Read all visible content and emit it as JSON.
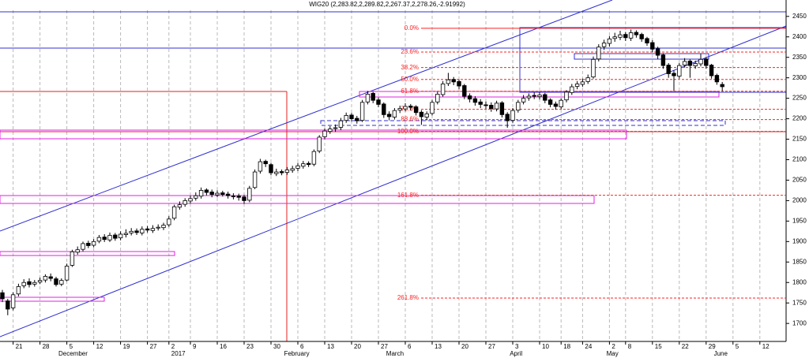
{
  "chart_data": {
    "type": "candlestick",
    "title": "WIG20 (2,283.82,2,289.82,2,267.37,2,278.26,-2.91992)",
    "categories": [
      null,
      null,
      "21",
      null,
      null,
      null,
      null,
      "28",
      null,
      null,
      null,
      null,
      "5",
      null,
      null,
      null,
      null,
      "12",
      null,
      null,
      null,
      null,
      "19",
      null,
      null,
      null,
      null,
      "27",
      null,
      null,
      null,
      "2",
      null,
      null,
      null,
      "9",
      null,
      null,
      null,
      null,
      "16",
      null,
      null,
      null,
      null,
      "23",
      null,
      null,
      null,
      null,
      "30",
      null,
      null,
      null,
      null,
      "6",
      null,
      null,
      null,
      null,
      "13",
      null,
      null,
      null,
      null,
      "20",
      null,
      null,
      null,
      null,
      "27",
      null,
      null,
      null,
      null,
      "6",
      null,
      null,
      null,
      null,
      "13",
      null,
      null,
      null,
      null,
      "20",
      null,
      null,
      null,
      null,
      "27",
      null,
      null,
      null,
      null,
      "3",
      null,
      null,
      null,
      null,
      "10",
      null,
      null,
      null,
      "18",
      null,
      null,
      null,
      "24",
      null,
      null,
      null,
      null,
      "2",
      null,
      null,
      "8",
      null,
      null,
      null,
      null,
      "15",
      null,
      null,
      null,
      null,
      "22",
      null,
      null,
      null,
      null,
      "29",
      null,
      null,
      null,
      null,
      "5",
      null,
      null,
      null,
      null,
      "12",
      null,
      null
    ],
    "months": [
      null,
      null,
      null,
      null,
      null,
      null,
      null,
      null,
      null,
      null,
      "December",
      null,
      null,
      null,
      null,
      null,
      null,
      null,
      null,
      null,
      null,
      null,
      null,
      null,
      null,
      null,
      null,
      null,
      null,
      null,
      null,
      "2017",
      null,
      null,
      null,
      null,
      null,
      null,
      null,
      null,
      null,
      null,
      null,
      null,
      null,
      null,
      null,
      null,
      null,
      null,
      null,
      null,
      "February",
      null,
      null,
      null,
      null,
      null,
      null,
      null,
      null,
      null,
      null,
      null,
      null,
      null,
      null,
      null,
      null,
      null,
      null,
      "March",
      null,
      null,
      null,
      null,
      null,
      null,
      null,
      null,
      null,
      null,
      null,
      null,
      null,
      null,
      null,
      null,
      null,
      null,
      null,
      null,
      null,
      null,
      "April",
      null,
      null,
      null,
      null,
      null,
      null,
      null,
      null,
      null,
      null,
      null,
      null,
      null,
      null,
      null,
      null,
      null,
      "May",
      null,
      null,
      null,
      null,
      null,
      null,
      null,
      null,
      null,
      null,
      null,
      null,
      null,
      null,
      null,
      null,
      null,
      null,
      null,
      "June",
      null,
      null,
      null,
      null,
      null,
      null,
      null,
      null,
      null
    ],
    "open": [
      1775,
      1755,
      1738,
      1772,
      1792,
      1802,
      1796,
      1801,
      1806,
      1814,
      1809,
      1796,
      1806,
      1842,
      1874,
      1881,
      1896,
      1891,
      1901,
      1911,
      1904,
      1916,
      1909,
      1917,
      1921,
      1926,
      1921,
      1931,
      1927,
      1933,
      1934,
      1941,
      1957,
      1984,
      1991,
      1999,
      2006,
      2011,
      2026,
      2021,
      2014,
      2019,
      2016,
      2011,
      2011,
      2009,
      2001,
      2032,
      2072,
      2096,
      2088,
      2066,
      2071,
      2069,
      2074,
      2079,
      2084,
      2091,
      2089,
      2121,
      2156,
      2169,
      2176,
      2179,
      2196,
      2209,
      2201,
      2196,
      2241,
      2262,
      2246,
      2236,
      2211,
      2204,
      2221,
      2224,
      2231,
      2229,
      2216,
      2204,
      2213,
      2241,
      2259,
      2286,
      2296,
      2291,
      2281,
      2256,
      2249,
      2241,
      2234,
      2233,
      2224,
      2239,
      2211,
      2196,
      2221,
      2241,
      2251,
      2257,
      2254,
      2259,
      2246,
      2236,
      2229,
      2246,
      2264,
      2279,
      2284,
      2291,
      2302,
      2346,
      2376,
      2384,
      2396,
      2399,
      2406,
      2397,
      2411,
      2406,
      2396,
      2386,
      2371,
      2356,
      2331,
      2311,
      2304,
      2331,
      2341,
      2329,
      2334,
      2346,
      2331,
      2306,
      2283.82,
      null,
      null,
      null,
      null,
      null,
      null,
      null,
      null,
      null
    ],
    "high": [
      1782,
      1760,
      1776,
      1797,
      1808,
      1810,
      1806,
      1812,
      1820,
      1822,
      1814,
      1810,
      1846,
      1880,
      1888,
      1900,
      1902,
      1906,
      1916,
      1918,
      1922,
      1921,
      1925,
      1930,
      1933,
      1932,
      1937,
      1938,
      1940,
      1942,
      1946,
      1962,
      1990,
      1998,
      2006,
      2012,
      2020,
      2032,
      2030,
      2027,
      2025,
      2024,
      2022,
      2018,
      2017,
      2014,
      2036,
      2076,
      2102,
      2100,
      2092,
      2078,
      2076,
      2082,
      2085,
      2092,
      2097,
      2096,
      2125,
      2160,
      2176,
      2182,
      2186,
      2202,
      2215,
      2214,
      2207,
      2246,
      2268,
      2266,
      2252,
      2240,
      2218,
      2226,
      2232,
      2238,
      2236,
      2233,
      2221,
      2218,
      2246,
      2266,
      2292,
      2312,
      2302,
      2296,
      2285,
      2262,
      2255,
      2248,
      2242,
      2240,
      2244,
      2243,
      2216,
      2226,
      2246,
      2258,
      2262,
      2264,
      2265,
      2263,
      2250,
      2242,
      2250,
      2270,
      2285,
      2292,
      2298,
      2308,
      2352,
      2382,
      2393,
      2402,
      2410,
      2415,
      2412,
      2418,
      2416,
      2410,
      2400,
      2392,
      2376,
      2360,
      2336,
      2318,
      2336,
      2348,
      2345,
      2342,
      2358,
      2350,
      2334,
      2310,
      2289.82,
      null,
      null,
      null,
      null,
      null,
      null,
      null,
      null,
      null
    ],
    "low": [
      1752,
      1720,
      1732,
      1766,
      1786,
      1788,
      1790,
      1796,
      1800,
      1803,
      1790,
      1791,
      1803,
      1838,
      1868,
      1876,
      1884,
      1886,
      1896,
      1899,
      1899,
      1902,
      1903,
      1910,
      1915,
      1916,
      1915,
      1922,
      1921,
      1927,
      1928,
      1936,
      1952,
      1978,
      1985,
      1993,
      2000,
      2005,
      2013,
      2008,
      2008,
      2010,
      2005,
      2003,
      2000,
      1992,
      1996,
      2028,
      2066,
      2082,
      2062,
      2060,
      2062,
      2063,
      2068,
      2072,
      2078,
      2082,
      2084,
      2116,
      2150,
      2163,
      2168,
      2172,
      2190,
      2193,
      2188,
      2192,
      2235,
      2238,
      2228,
      2202,
      2196,
      2198,
      2214,
      2218,
      2220,
      2208,
      2185,
      2196,
      2208,
      2235,
      2254,
      2280,
      2282,
      2272,
      2248,
      2240,
      2232,
      2226,
      2224,
      2217,
      2218,
      2203,
      2178,
      2190,
      2215,
      2235,
      2244,
      2248,
      2247,
      2238,
      2228,
      2222,
      2224,
      2240,
      2258,
      2272,
      2278,
      2285,
      2298,
      2340,
      2368,
      2376,
      2388,
      2392,
      2390,
      2390,
      2398,
      2388,
      2378,
      2362,
      2346,
      2322,
      2300,
      2268,
      2298,
      2325,
      2300,
      2322,
      2328,
      2322,
      2298,
      2283,
      2267.37,
      null,
      null,
      null,
      null,
      null,
      null,
      null,
      null,
      null
    ],
    "close": [
      1760,
      1735,
      1770,
      1790,
      1800,
      1795,
      1800,
      1805,
      1815,
      1810,
      1795,
      1805,
      1840,
      1875,
      1880,
      1895,
      1890,
      1900,
      1910,
      1905,
      1915,
      1908,
      1918,
      1920,
      1925,
      1922,
      1930,
      1928,
      1932,
      1935,
      1940,
      1955,
      1985,
      1990,
      2000,
      2005,
      2012,
      2025,
      2020,
      2015,
      2018,
      2015,
      2012,
      2010,
      2008,
      2000,
      2030,
      2070,
      2095,
      2090,
      2068,
      2070,
      2068,
      2075,
      2078,
      2085,
      2090,
      2088,
      2120,
      2155,
      2170,
      2175,
      2178,
      2195,
      2208,
      2200,
      2195,
      2240,
      2260,
      2245,
      2235,
      2210,
      2205,
      2220,
      2225,
      2230,
      2228,
      2215,
      2205,
      2212,
      2240,
      2260,
      2285,
      2295,
      2290,
      2280,
      2255,
      2248,
      2240,
      2235,
      2232,
      2225,
      2238,
      2210,
      2195,
      2220,
      2240,
      2250,
      2255,
      2255,
      2258,
      2245,
      2235,
      2230,
      2245,
      2265,
      2278,
      2285,
      2290,
      2300,
      2345,
      2375,
      2385,
      2395,
      2400,
      2405,
      2398,
      2410,
      2405,
      2395,
      2385,
      2370,
      2355,
      2330,
      2310,
      2305,
      2330,
      2340,
      2330,
      2335,
      2345,
      2330,
      2305,
      2290,
      2278.26,
      null,
      null,
      null,
      null,
      null,
      null,
      null,
      null,
      null
    ],
    "ylim": [
      1656,
      2465
    ],
    "yticks": [
      1700,
      1750,
      1800,
      1850,
      1900,
      1950,
      2000,
      2050,
      2100,
      2150,
      2200,
      2250,
      2300,
      2350,
      2400,
      2450
    ],
    "grid": true,
    "fib_levels": [
      {
        "label": "0.0%",
        "value": 2421
      },
      {
        "label": "23.6%",
        "value": 2363
      },
      {
        "label": "38.2%",
        "value": 2325
      },
      {
        "label": "50.0%",
        "value": 2296
      },
      {
        "label": "61.8%",
        "value": 2267
      },
      {
        "label": "78.6%",
        "value": 2223
      },
      {
        "label": "88.6%",
        "value": 2198
      },
      {
        "label": "100.0%",
        "value": 2169
      },
      {
        "label": "161.8%",
        "value": 2013
      },
      {
        "label": "261.8%",
        "value": 1762
      }
    ],
    "fib_color": "#ff2020"
  }
}
